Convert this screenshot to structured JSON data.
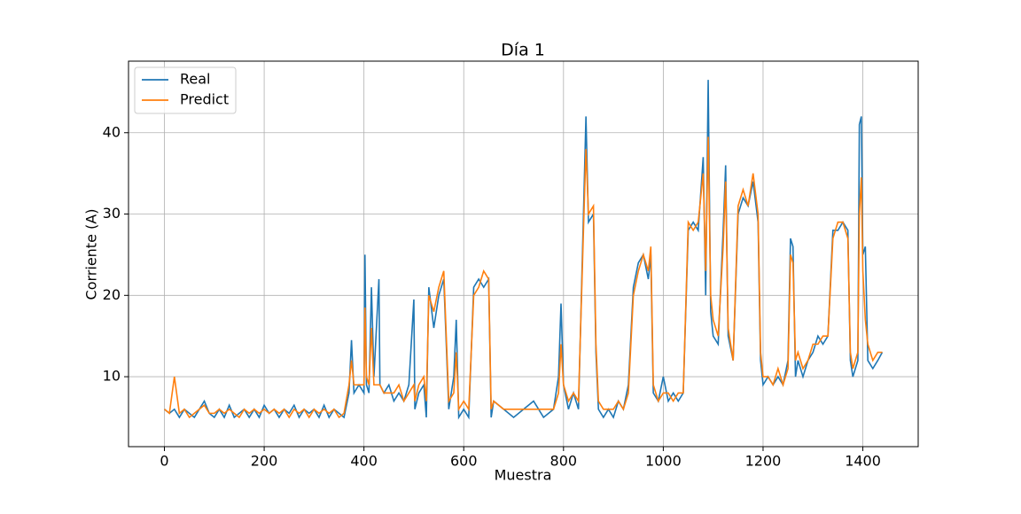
{
  "chart_data": {
    "type": "line",
    "title": "Día 1",
    "x_label": "Muestra",
    "y_label": "Corriente (A)",
    "x": [
      0,
      10,
      20,
      30,
      40,
      50,
      60,
      70,
      80,
      90,
      100,
      110,
      120,
      130,
      140,
      150,
      160,
      170,
      180,
      190,
      200,
      210,
      220,
      230,
      240,
      250,
      260,
      270,
      280,
      290,
      300,
      310,
      320,
      330,
      340,
      350,
      360,
      370,
      375,
      380,
      390,
      400,
      402,
      405,
      410,
      415,
      420,
      430,
      432,
      440,
      450,
      460,
      470,
      480,
      490,
      500,
      502,
      510,
      520,
      525,
      530,
      540,
      550,
      560,
      570,
      580,
      585,
      590,
      600,
      610,
      620,
      630,
      640,
      650,
      655,
      660,
      680,
      700,
      720,
      740,
      760,
      780,
      790,
      795,
      800,
      810,
      820,
      830,
      840,
      845,
      850,
      860,
      865,
      870,
      880,
      890,
      900,
      910,
      920,
      930,
      940,
      950,
      960,
      970,
      975,
      980,
      990,
      1000,
      1010,
      1020,
      1030,
      1040,
      1050,
      1060,
      1070,
      1080,
      1085,
      1090,
      1095,
      1100,
      1110,
      1120,
      1125,
      1130,
      1140,
      1150,
      1160,
      1170,
      1180,
      1190,
      1195,
      1200,
      1210,
      1220,
      1230,
      1240,
      1250,
      1255,
      1260,
      1265,
      1270,
      1280,
      1290,
      1300,
      1310,
      1320,
      1330,
      1340,
      1350,
      1360,
      1370,
      1375,
      1380,
      1390,
      1393,
      1397,
      1400,
      1405,
      1410,
      1420,
      1430,
      1439
    ],
    "series": [
      {
        "name": "Real",
        "color": "#1f77b4",
        "values": [
          6,
          5.5,
          6,
          5,
          6,
          5.5,
          5,
          6,
          7,
          5.5,
          5,
          6,
          5,
          6.5,
          5,
          5.5,
          6,
          5,
          6,
          5,
          6.5,
          5.5,
          6,
          5,
          6,
          5.5,
          6.5,
          5,
          6,
          5.5,
          6,
          5,
          6.5,
          5,
          6,
          5.5,
          5,
          8,
          14.5,
          8,
          9,
          8,
          25,
          9,
          8,
          21,
          10,
          22,
          9,
          8,
          9,
          7,
          8,
          7,
          9,
          19.5,
          6,
          8,
          9,
          5,
          21,
          16,
          20,
          22,
          6,
          10,
          17,
          5,
          6,
          5,
          21,
          22,
          21,
          22,
          5,
          7,
          6,
          5,
          6,
          7,
          5,
          6,
          10,
          19,
          9,
          6,
          8,
          6,
          30,
          42,
          29,
          30,
          13,
          6,
          5,
          6,
          5,
          7,
          6,
          9,
          21,
          24,
          25,
          22,
          25,
          8,
          7,
          10,
          7,
          8,
          7,
          8,
          28,
          29,
          28,
          37,
          20,
          46.5,
          18,
          15,
          14,
          28,
          36,
          15,
          12,
          30,
          32,
          31,
          34,
          29,
          12,
          9,
          10,
          9,
          10,
          9,
          12,
          27,
          26,
          10,
          12,
          10,
          12,
          13,
          15,
          14,
          15,
          28,
          28,
          29,
          28,
          12,
          10,
          12,
          41,
          42,
          25,
          26,
          12,
          11,
          12,
          13
        ]
      },
      {
        "name": "Predict",
        "color": "#ff7f0e",
        "values": [
          6,
          5.5,
          10,
          5.5,
          6,
          5,
          5.5,
          6,
          6.5,
          5.5,
          5.5,
          6,
          5.5,
          6,
          5.5,
          5,
          6,
          5.5,
          6,
          5.5,
          6,
          5.5,
          6,
          5.5,
          6,
          5,
          6,
          5.5,
          6,
          5,
          6,
          5.5,
          6,
          5.5,
          6,
          5,
          5.5,
          9,
          12,
          9,
          9,
          9,
          18.5,
          10,
          9,
          16,
          9,
          9,
          9,
          8,
          8,
          8,
          9,
          7,
          8,
          9,
          7,
          9,
          10,
          7,
          20,
          18,
          21,
          23,
          7,
          8,
          13,
          6,
          7,
          6,
          20,
          21,
          23,
          22,
          6,
          7,
          6,
          6,
          6,
          6,
          6,
          6,
          8,
          14,
          9,
          7,
          8,
          7,
          28,
          38,
          30,
          31,
          14,
          7,
          6,
          6,
          6,
          7,
          6,
          8,
          20,
          23,
          25,
          23,
          26,
          9,
          7,
          8,
          8,
          7,
          8,
          8,
          29,
          28,
          29,
          35,
          23,
          39.5,
          20,
          17,
          15,
          26,
          34,
          16,
          12,
          31,
          33,
          31,
          35,
          30,
          13,
          10,
          10,
          9,
          11,
          9,
          11,
          25,
          24,
          12,
          13,
          11,
          12,
          14,
          14,
          15,
          15,
          27,
          29,
          29,
          27,
          13,
          11,
          13,
          30,
          34.5,
          23,
          17,
          14,
          12,
          13,
          13
        ]
      }
    ],
    "xlim": [
      -71.95,
      1510.95
    ],
    "ylim": [
      1.4,
      48.8
    ],
    "xticks": [
      0,
      200,
      400,
      600,
      800,
      1000,
      1200,
      1400
    ],
    "yticks": [
      10,
      20,
      30,
      40
    ],
    "grid": true,
    "legend": "upper left"
  }
}
